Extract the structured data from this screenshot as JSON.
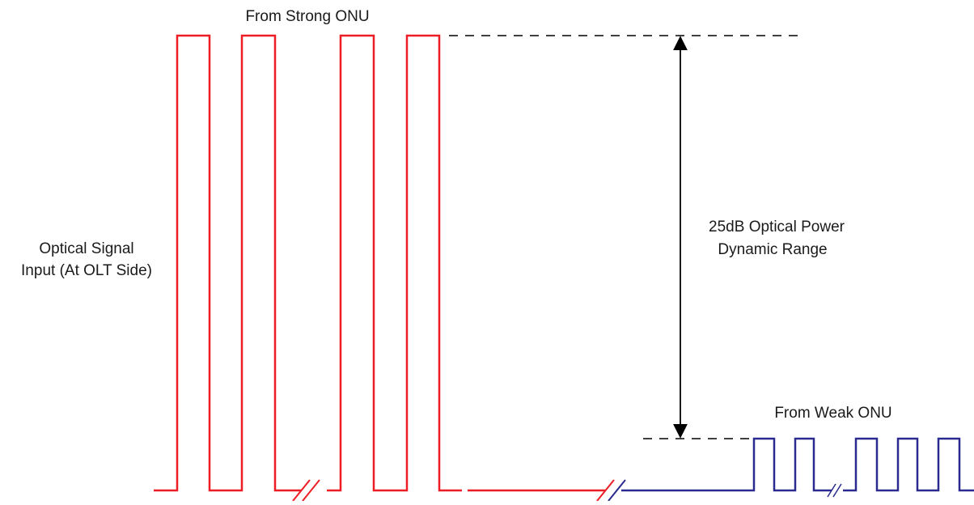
{
  "labels": {
    "strong": "From Strong ONU",
    "weak": "From Weak ONU",
    "input_line1": "Optical Signal",
    "input_line2": "Input (At OLT Side)",
    "range_line1": "25dB Optical Power",
    "range_line2": "Dynamic Range"
  },
  "colors": {
    "strong_signal": "#ee1c24",
    "weak_signal": "#2b2b8f",
    "reference": "#000000"
  }
}
